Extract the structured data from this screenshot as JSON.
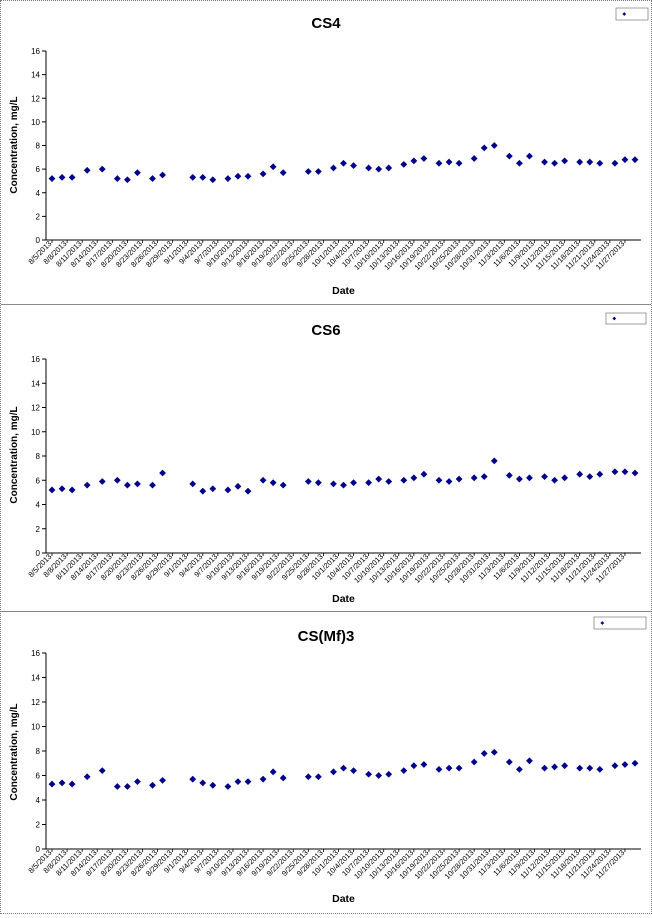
{
  "dates": [
    "8/5/2013",
    "8/8/2013",
    "8/11/2013",
    "8/14/2013",
    "8/17/2013",
    "8/20/2013",
    "8/23/2013",
    "8/26/2013",
    "8/29/2013",
    "9/1/2013",
    "9/4/2013",
    "9/7/2013",
    "9/10/2013",
    "9/13/2013",
    "9/16/2013",
    "9/19/2013",
    "9/22/2013",
    "9/25/2013",
    "9/28/2013",
    "10/1/2013",
    "10/4/2013",
    "10/7/2013",
    "10/10/2013",
    "10/13/2013",
    "10/16/2013",
    "10/19/2013",
    "10/22/2013",
    "10/25/2013",
    "10/28/2013",
    "10/31/2013",
    "11/3/2013",
    "11/6/2013",
    "11/9/2013",
    "11/12/2013",
    "11/15/2013",
    "11/18/2013",
    "11/21/2013",
    "11/24/2013",
    "11/27/2013"
  ],
  "colors": {
    "marker": "#00008B",
    "axis": "#000000",
    "frame": "#888888"
  },
  "chart_data": [
    {
      "type": "scatter",
      "title": "CS4",
      "xlabel": "Date",
      "ylabel": "Concentration, mg/L",
      "ylim": [
        0,
        16
      ],
      "yticks": [
        0,
        2,
        4,
        6,
        8,
        10,
        12,
        14,
        16
      ],
      "xlim": [
        "8/5/2013",
        "11/29/2013"
      ],
      "grid": false,
      "legend": {
        "placement": "top-right",
        "entries": [
          ""
        ]
      },
      "series": [
        {
          "marker": "diamond",
          "points": [
            [
              "8/5/2013",
              5.2
            ],
            [
              "8/7/2013",
              5.3
            ],
            [
              "8/9/2013",
              5.3
            ],
            [
              "8/12/2013",
              5.9
            ],
            [
              "8/15/2013",
              6.0
            ],
            [
              "8/18/2013",
              5.2
            ],
            [
              "8/20/2013",
              5.1
            ],
            [
              "8/22/2013",
              5.7
            ],
            [
              "8/25/2013",
              5.2
            ],
            [
              "8/27/2013",
              5.5
            ],
            [
              "9/2/2013",
              5.3
            ],
            [
              "9/4/2013",
              5.3
            ],
            [
              "9/6/2013",
              5.1
            ],
            [
              "9/9/2013",
              5.2
            ],
            [
              "9/11/2013",
              5.4
            ],
            [
              "9/13/2013",
              5.4
            ],
            [
              "9/16/2013",
              5.6
            ],
            [
              "9/18/2013",
              6.2
            ],
            [
              "9/20/2013",
              5.7
            ],
            [
              "9/25/2013",
              5.8
            ],
            [
              "9/27/2013",
              5.8
            ],
            [
              "9/30/2013",
              6.1
            ],
            [
              "10/2/2013",
              6.5
            ],
            [
              "10/4/2013",
              6.3
            ],
            [
              "10/7/2013",
              6.1
            ],
            [
              "10/9/2013",
              6.0
            ],
            [
              "10/11/2013",
              6.1
            ],
            [
              "10/14/2013",
              6.4
            ],
            [
              "10/16/2013",
              6.7
            ],
            [
              "10/18/2013",
              6.9
            ],
            [
              "10/21/2013",
              6.5
            ],
            [
              "10/23/2013",
              6.6
            ],
            [
              "10/25/2013",
              6.5
            ],
            [
              "10/28/2013",
              6.9
            ],
            [
              "10/30/2013",
              7.8
            ],
            [
              "11/1/2013",
              8.0
            ],
            [
              "11/4/2013",
              7.1
            ],
            [
              "11/6/2013",
              6.5
            ],
            [
              "11/8/2013",
              7.1
            ],
            [
              "11/11/2013",
              6.6
            ],
            [
              "11/13/2013",
              6.5
            ],
            [
              "11/15/2013",
              6.7
            ],
            [
              "11/18/2013",
              6.6
            ],
            [
              "11/20/2013",
              6.6
            ],
            [
              "11/22/2013",
              6.5
            ],
            [
              "11/25/2013",
              6.5
            ],
            [
              "11/27/2013",
              6.8
            ],
            [
              "11/29/2013",
              6.8
            ]
          ]
        }
      ]
    },
    {
      "type": "scatter",
      "title": "CS6",
      "xlabel": "Date",
      "ylabel": "Concentration, mg/L",
      "ylim": [
        0,
        16
      ],
      "yticks": [
        0,
        2,
        4,
        6,
        8,
        10,
        12,
        14,
        16
      ],
      "xlim": [
        "8/5/2013",
        "11/29/2013"
      ],
      "grid": false,
      "legend": {
        "placement": "top-right",
        "entries": [
          ""
        ]
      },
      "series": [
        {
          "marker": "diamond",
          "points": [
            [
              "8/5/2013",
              5.2
            ],
            [
              "8/7/2013",
              5.3
            ],
            [
              "8/9/2013",
              5.2
            ],
            [
              "8/12/2013",
              5.6
            ],
            [
              "8/15/2013",
              5.9
            ],
            [
              "8/18/2013",
              6.0
            ],
            [
              "8/20/2013",
              5.6
            ],
            [
              "8/22/2013",
              5.7
            ],
            [
              "8/25/2013",
              5.6
            ],
            [
              "8/27/2013",
              6.6
            ],
            [
              "9/2/2013",
              5.7
            ],
            [
              "9/4/2013",
              5.1
            ],
            [
              "9/6/2013",
              5.3
            ],
            [
              "9/9/2013",
              5.2
            ],
            [
              "9/11/2013",
              5.5
            ],
            [
              "9/13/2013",
              5.1
            ],
            [
              "9/16/2013",
              6.0
            ],
            [
              "9/18/2013",
              5.8
            ],
            [
              "9/20/2013",
              5.6
            ],
            [
              "9/25/2013",
              5.9
            ],
            [
              "9/27/2013",
              5.8
            ],
            [
              "9/30/2013",
              5.7
            ],
            [
              "10/2/2013",
              5.6
            ],
            [
              "10/4/2013",
              5.8
            ],
            [
              "10/7/2013",
              5.8
            ],
            [
              "10/9/2013",
              6.1
            ],
            [
              "10/11/2013",
              5.9
            ],
            [
              "10/14/2013",
              6.0
            ],
            [
              "10/16/2013",
              6.2
            ],
            [
              "10/18/2013",
              6.5
            ],
            [
              "10/21/2013",
              6.0
            ],
            [
              "10/23/2013",
              5.9
            ],
            [
              "10/25/2013",
              6.1
            ],
            [
              "10/28/2013",
              6.2
            ],
            [
              "10/30/2013",
              6.3
            ],
            [
              "11/1/2013",
              7.6
            ],
            [
              "11/4/2013",
              6.4
            ],
            [
              "11/6/2013",
              6.1
            ],
            [
              "11/8/2013",
              6.2
            ],
            [
              "11/11/2013",
              6.3
            ],
            [
              "11/13/2013",
              6.0
            ],
            [
              "11/15/2013",
              6.2
            ],
            [
              "11/18/2013",
              6.5
            ],
            [
              "11/20/2013",
              6.3
            ],
            [
              "11/22/2013",
              6.5
            ],
            [
              "11/25/2013",
              6.7
            ],
            [
              "11/27/2013",
              6.7
            ],
            [
              "11/29/2013",
              6.6
            ]
          ]
        }
      ]
    },
    {
      "type": "scatter",
      "title": "CS(Mf)3",
      "xlabel": "Date",
      "ylabel": "Concentration, mg/L",
      "ylim": [
        0,
        16
      ],
      "yticks": [
        0,
        2,
        4,
        6,
        8,
        10,
        12,
        14,
        16
      ],
      "xlim": [
        "8/5/2013",
        "11/29/2013"
      ],
      "grid": false,
      "legend": {
        "placement": "top-right",
        "entries": [
          ""
        ]
      },
      "series": [
        {
          "marker": "diamond",
          "points": [
            [
              "8/5/2013",
              5.3
            ],
            [
              "8/7/2013",
              5.4
            ],
            [
              "8/9/2013",
              5.3
            ],
            [
              "8/12/2013",
              5.9
            ],
            [
              "8/15/2013",
              6.4
            ],
            [
              "8/18/2013",
              5.1
            ],
            [
              "8/20/2013",
              5.1
            ],
            [
              "8/22/2013",
              5.5
            ],
            [
              "8/25/2013",
              5.2
            ],
            [
              "8/27/2013",
              5.6
            ],
            [
              "9/2/2013",
              5.7
            ],
            [
              "9/4/2013",
              5.4
            ],
            [
              "9/6/2013",
              5.2
            ],
            [
              "9/9/2013",
              5.1
            ],
            [
              "9/11/2013",
              5.5
            ],
            [
              "9/13/2013",
              5.5
            ],
            [
              "9/16/2013",
              5.7
            ],
            [
              "9/18/2013",
              6.3
            ],
            [
              "9/20/2013",
              5.8
            ],
            [
              "9/25/2013",
              5.9
            ],
            [
              "9/27/2013",
              5.9
            ],
            [
              "9/30/2013",
              6.3
            ],
            [
              "10/2/2013",
              6.6
            ],
            [
              "10/4/2013",
              6.4
            ],
            [
              "10/7/2013",
              6.1
            ],
            [
              "10/9/2013",
              6.0
            ],
            [
              "10/11/2013",
              6.1
            ],
            [
              "10/14/2013",
              6.4
            ],
            [
              "10/16/2013",
              6.8
            ],
            [
              "10/18/2013",
              6.9
            ],
            [
              "10/21/2013",
              6.5
            ],
            [
              "10/23/2013",
              6.6
            ],
            [
              "10/25/2013",
              6.6
            ],
            [
              "10/28/2013",
              7.1
            ],
            [
              "10/30/2013",
              7.8
            ],
            [
              "11/1/2013",
              7.9
            ],
            [
              "11/4/2013",
              7.1
            ],
            [
              "11/6/2013",
              6.5
            ],
            [
              "11/8/2013",
              7.2
            ],
            [
              "11/11/2013",
              6.6
            ],
            [
              "11/13/2013",
              6.7
            ],
            [
              "11/15/2013",
              6.8
            ],
            [
              "11/18/2013",
              6.6
            ],
            [
              "11/20/2013",
              6.6
            ],
            [
              "11/22/2013",
              6.5
            ],
            [
              "11/25/2013",
              6.8
            ],
            [
              "11/27/2013",
              6.9
            ],
            [
              "11/29/2013",
              7.0
            ]
          ]
        }
      ]
    }
  ]
}
